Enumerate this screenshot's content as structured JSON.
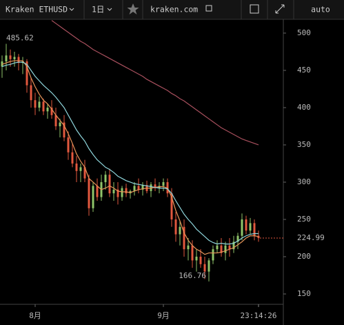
{
  "toolbar": {
    "symbol": "Kraken ETHUSD",
    "interval": "1日",
    "site": "kraken.com",
    "scale": "auto"
  },
  "chart_data": {
    "type": "candlestick",
    "categories": [
      null,
      null,
      null,
      null,
      null,
      null,
      null,
      null,
      "8月",
      null,
      null,
      null,
      null,
      null,
      null,
      null,
      null,
      null,
      null,
      null,
      null,
      null,
      null,
      null,
      null,
      null,
      null,
      null,
      null,
      null,
      null,
      null,
      null,
      null,
      null,
      null,
      null,
      null,
      null,
      "9月",
      null,
      null,
      null,
      null,
      null,
      null,
      null,
      null,
      null,
      null,
      null,
      null,
      null,
      null,
      null,
      null,
      null,
      null,
      null,
      null,
      null,
      null,
      null
    ],
    "open": [
      455,
      462,
      470,
      465,
      468,
      460,
      462,
      430,
      410,
      400,
      408,
      395,
      400,
      390,
      375,
      380,
      360,
      340,
      325,
      315,
      320,
      305,
      265,
      295,
      280,
      300,
      310,
      285,
      290,
      280,
      292,
      285,
      288,
      295,
      290,
      296,
      288,
      297,
      292,
      295,
      300,
      285,
      250,
      230,
      240,
      210,
      215,
      195,
      200,
      190,
      180,
      195,
      210,
      215,
      205,
      215,
      210,
      220,
      228,
      250,
      235,
      245,
      228
    ],
    "high": [
      470,
      485.62,
      478,
      475,
      472,
      468,
      465,
      440,
      420,
      415,
      412,
      405,
      410,
      400,
      385,
      390,
      368,
      352,
      335,
      325,
      330,
      310,
      300,
      305,
      310,
      315,
      318,
      300,
      300,
      295,
      298,
      290,
      300,
      305,
      300,
      302,
      300,
      305,
      300,
      305,
      305,
      292,
      260,
      248,
      250,
      225,
      222,
      210,
      210,
      200,
      198,
      215,
      222,
      225,
      220,
      225,
      228,
      232,
      258,
      255,
      252,
      250,
      235
    ],
    "low": [
      440,
      450,
      455,
      455,
      450,
      445,
      420,
      400,
      390,
      395,
      390,
      385,
      385,
      370,
      360,
      355,
      330,
      320,
      300,
      300,
      300,
      255,
      260,
      275,
      275,
      290,
      280,
      275,
      270,
      275,
      280,
      278,
      282,
      285,
      282,
      285,
      280,
      288,
      285,
      288,
      280,
      240,
      220,
      215,
      200,
      195,
      185,
      180,
      185,
      170,
      166.76,
      190,
      205,
      200,
      195,
      200,
      205,
      210,
      222,
      230,
      230,
      222,
      220
    ],
    "close": [
      462,
      470,
      465,
      468,
      460,
      462,
      430,
      410,
      400,
      408,
      395,
      400,
      390,
      375,
      380,
      360,
      340,
      325,
      315,
      320,
      305,
      265,
      295,
      280,
      300,
      310,
      285,
      290,
      280,
      292,
      285,
      288,
      295,
      290,
      296,
      288,
      297,
      292,
      295,
      300,
      285,
      250,
      230,
      240,
      210,
      215,
      195,
      200,
      190,
      180,
      195,
      210,
      215,
      205,
      215,
      210,
      220,
      228,
      250,
      235,
      245,
      228,
      224.99
    ],
    "up_color": "#8fc46a",
    "down_color": "#e2583e",
    "series": [
      {
        "color": "#e8955a",
        "values": [
          458,
          460,
          462,
          463,
          463,
          463,
          455,
          440,
          428,
          418,
          410,
          405,
          398,
          390,
          383,
          376,
          365,
          352,
          338,
          328,
          320,
          305,
          300,
          295,
          290,
          292,
          295,
          292,
          288,
          287,
          287,
          286,
          288,
          290,
          291,
          292,
          292,
          293,
          294,
          294,
          292,
          280,
          262,
          248,
          232,
          222,
          215,
          210,
          207,
          203,
          205,
          205,
          205,
          206,
          208,
          210,
          212,
          216,
          220,
          225,
          228,
          228,
          227
        ]
      },
      {
        "color": "#8fd6dc",
        "values": [
          455,
          457,
          458,
          460,
          461,
          461,
          458,
          450,
          442,
          436,
          430,
          425,
          420,
          414,
          407,
          400,
          390,
          380,
          370,
          362,
          355,
          345,
          337,
          330,
          325,
          320,
          317,
          313,
          308,
          305,
          302,
          300,
          298,
          297,
          296,
          295,
          294,
          293,
          292,
          292,
          291,
          285,
          275,
          266,
          257,
          250,
          244,
          237,
          232,
          227,
          222,
          219,
          217,
          218,
          217,
          217,
          218,
          221,
          225,
          228,
          230,
          231,
          231
        ]
      },
      {
        "color": "#a9505e",
        "values": [
          null,
          null,
          null,
          null,
          null,
          null,
          null,
          null,
          null,
          null,
          null,
          null,
          517,
          513,
          509,
          505,
          501,
          497,
          493,
          489,
          486,
          482,
          478,
          475,
          472,
          469,
          466,
          463,
          460,
          457,
          454,
          451,
          448,
          445,
          442,
          438,
          435,
          432,
          429,
          426,
          423,
          419,
          416,
          412,
          409,
          405,
          401,
          397,
          393,
          389,
          385,
          381,
          377,
          373,
          370,
          367,
          364,
          361,
          358,
          356,
          354,
          352,
          350
        ]
      }
    ],
    "ylim": [
      136.1,
      518.5
    ],
    "yticks": [
      150,
      200,
      250,
      300,
      350,
      400,
      450,
      500
    ],
    "high_label": 485.62,
    "low_label": 166.76,
    "last_price": 224.99,
    "last_price_color": "#e2583e",
    "time_label": "23:14:26"
  }
}
